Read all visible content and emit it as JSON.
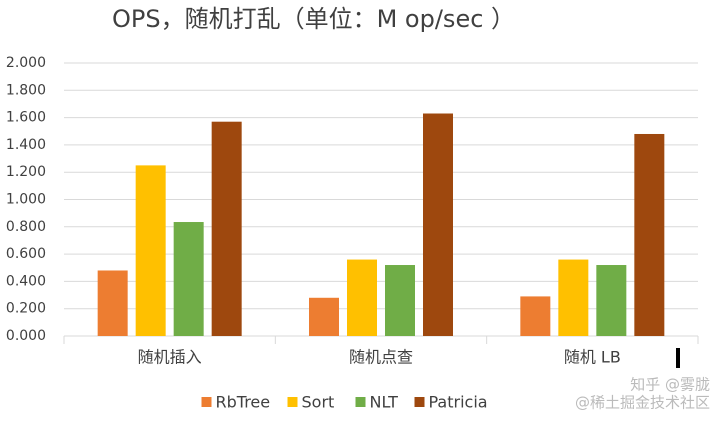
{
  "chart_data": {
    "type": "bar",
    "title": "OPS，随机打乱（单位：M op/sec ）",
    "categories": [
      "随机插入",
      "随机点查",
      "随机 LB"
    ],
    "series": [
      {
        "name": "RbTree",
        "color": "#ED7D31",
        "values": [
          0.48,
          0.28,
          0.29
        ]
      },
      {
        "name": "Sort",
        "color": "#FFC000",
        "values": [
          1.25,
          0.56,
          0.56
        ]
      },
      {
        "name": "NLT",
        "color": "#70AD47",
        "values": [
          0.835,
          0.52,
          0.52
        ]
      },
      {
        "name": "Patricia",
        "color": "#9E480E",
        "values": [
          1.57,
          1.63,
          1.48
        ]
      }
    ],
    "ylim": [
      0,
      2
    ],
    "yticks": [
      {
        "value": 0,
        "label": "0.000"
      },
      {
        "value": 0.2,
        "label": "0.200"
      },
      {
        "value": 0.4,
        "label": "0.400"
      },
      {
        "value": 0.6,
        "label": "0.600"
      },
      {
        "value": 0.8,
        "label": "0.800"
      },
      {
        "value": 1,
        "label": "1.000"
      },
      {
        "value": 1.2,
        "label": "1.200"
      },
      {
        "value": 1.4,
        "label": "1.400"
      },
      {
        "value": 1.6,
        "label": "1.600"
      },
      {
        "value": 1.8,
        "label": "1.800"
      },
      {
        "value": 2,
        "label": "2.000"
      }
    ],
    "grid": true,
    "legend": "bottom",
    "watermarks": [
      "知乎 @雾胧",
      "@稀土掘金技术社区"
    ]
  }
}
